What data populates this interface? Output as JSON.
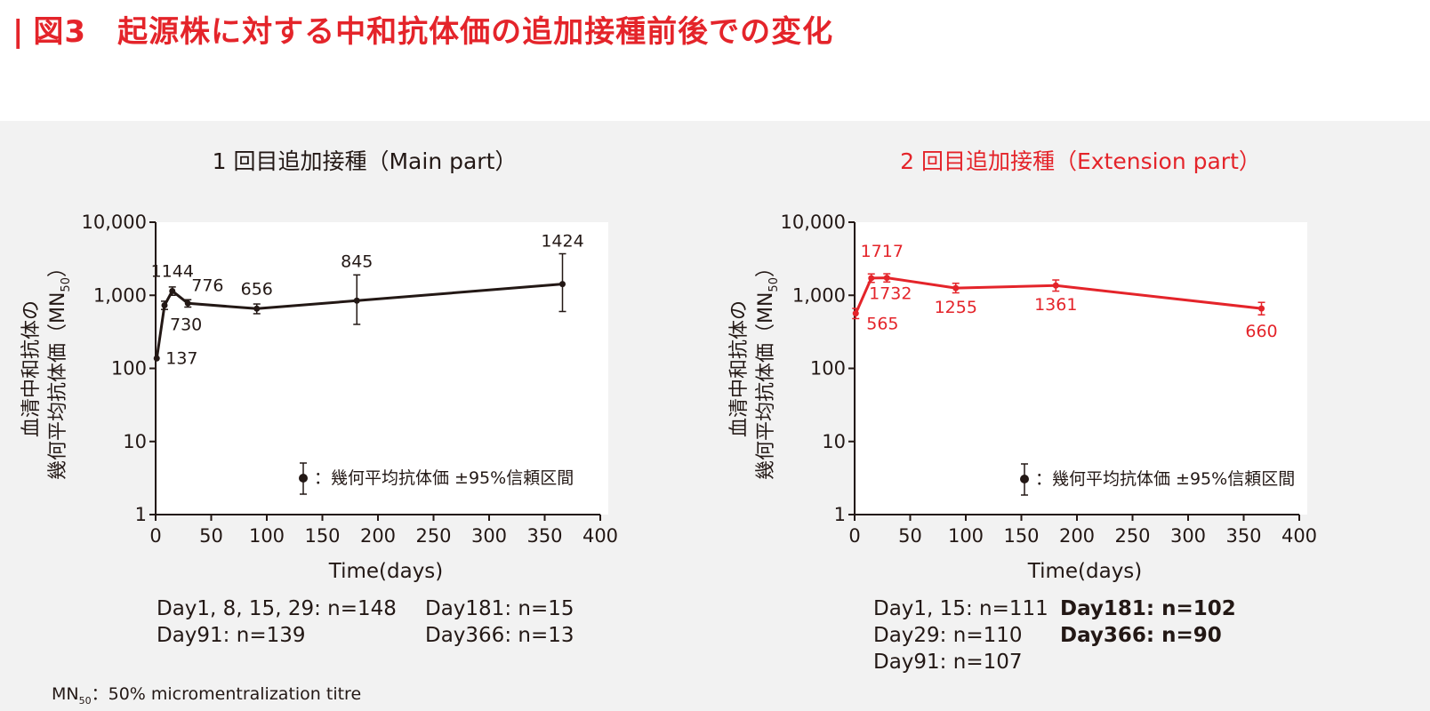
{
  "header": {
    "bar": "|",
    "title": "図3　起源株に対する中和抗体価の追加接種前後での変化"
  },
  "chart_data": [
    {
      "type": "line",
      "title": "1 回目追加接種（Main part）",
      "xlabel": "Time(days)",
      "ylabel": [
        "血清中和抗体の",
        "幾何平均抗体価（MN",
        "50",
        "）"
      ],
      "yscale": "log",
      "ylim": [
        1,
        10000
      ],
      "xlim": [
        0,
        400
      ],
      "x_ticks": [
        0,
        50,
        100,
        150,
        200,
        250,
        300,
        350,
        400
      ],
      "y_ticks": [
        1,
        10,
        100,
        1000,
        10000
      ],
      "y_tick_labels": [
        "1",
        "10",
        "100",
        "1,000",
        "10,000"
      ],
      "color": "#231815",
      "grid": false,
      "series": [
        {
          "x": [
            1,
            8,
            15,
            29,
            91,
            181,
            366
          ],
          "y": [
            137,
            730,
            1144,
            776,
            656,
            845,
            1424
          ],
          "lower": [
            137,
            640,
            1000,
            690,
            560,
            400,
            600
          ],
          "upper": [
            137,
            830,
            1300,
            870,
            760,
            1900,
            3700
          ],
          "labels": [
            "137",
            "730",
            "1144",
            "776",
            "656",
            "845",
            "1424"
          ]
        }
      ],
      "legend": {
        "text": "：幾何平均抗体価 ±95%信頼区間",
        "position": "bottom-right"
      },
      "n_notes": [
        [
          "Day1, 8, 15, 29: n=148",
          "Day91: n=139"
        ],
        [
          "Day181: n=15",
          "Day366: n=13"
        ]
      ]
    },
    {
      "type": "line",
      "title": "2 回目追加接種（Extension part）",
      "xlabel": "Time(days)",
      "ylabel": [
        "血清中和抗体の",
        "幾何平均抗体価（MN",
        "50",
        "）"
      ],
      "yscale": "log",
      "ylim": [
        1,
        10000
      ],
      "xlim": [
        0,
        400
      ],
      "x_ticks": [
        0,
        50,
        100,
        150,
        200,
        250,
        300,
        350,
        400
      ],
      "y_ticks": [
        1,
        10,
        100,
        1000,
        10000
      ],
      "y_tick_labels": [
        "1",
        "10",
        "100",
        "1,000",
        "10,000"
      ],
      "color": "#e4242a",
      "grid": false,
      "series": [
        {
          "x": [
            1,
            15,
            29,
            91,
            181,
            366
          ],
          "y": [
            565,
            1717,
            1732,
            1255,
            1361,
            660
          ],
          "lower": [
            480,
            1500,
            1520,
            1080,
            1140,
            540
          ],
          "upper": [
            660,
            1960,
            1970,
            1460,
            1620,
            800
          ],
          "labels": [
            "565",
            "1717",
            "1732",
            "1255",
            "1361",
            "660"
          ]
        }
      ],
      "legend": {
        "text": "：幾何平均抗体価 ±95%信頼区間",
        "position": "bottom-right"
      },
      "n_notes": [
        [
          "Day1, 15: n=111",
          "Day29: n=110",
          "Day91: n=107"
        ],
        [
          "Day181: n=102",
          "Day366: n=90"
        ]
      ]
    }
  ],
  "footnote": {
    "mn": "MN",
    "sub": "50",
    "text": "：50% micromentralization titre"
  }
}
